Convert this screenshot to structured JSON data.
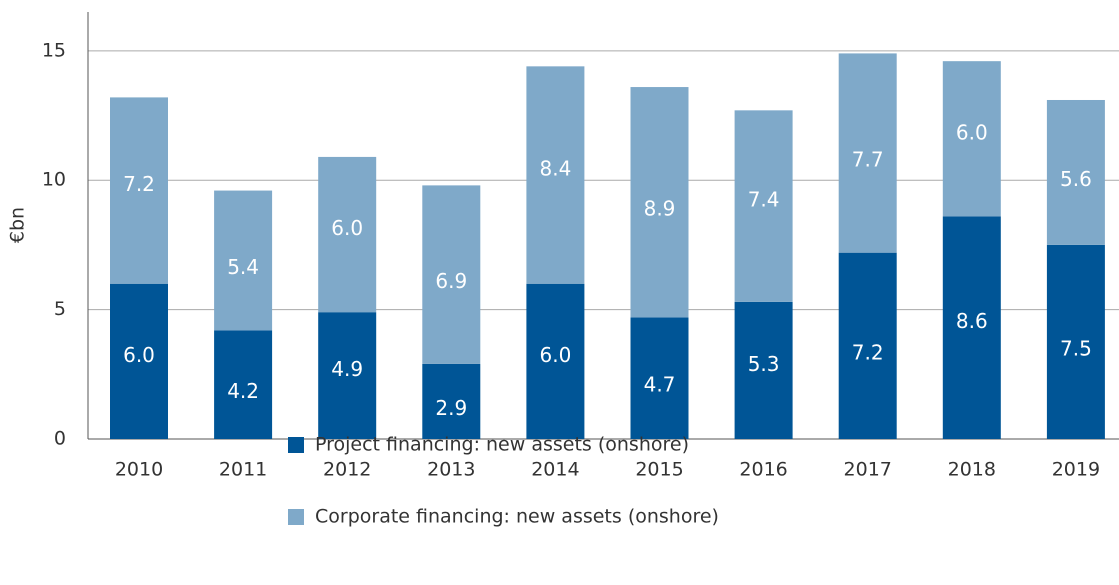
{
  "chart_data": {
    "type": "stacked_bar",
    "y_label": "€bn",
    "categories": [
      "2010",
      "2011",
      "2012",
      "2013",
      "2014",
      "2015",
      "2016",
      "2017",
      "2018",
      "2019"
    ],
    "series": [
      {
        "name": "Project financing: new assets (onshore)",
        "color": "#005596",
        "values": [
          6.0,
          4.2,
          4.9,
          2.9,
          6.0,
          4.7,
          5.3,
          7.2,
          8.6,
          7.5
        ],
        "value_labels": [
          "6.0",
          "4.2",
          "4.9",
          "2.9",
          "6.0",
          "4.7",
          "5.3",
          "7.2",
          "8.6",
          "7.5"
        ]
      },
      {
        "name": "Corporate financing: new assets (onshore)",
        "color": "#7fa9c9",
        "values": [
          7.2,
          5.4,
          6.0,
          6.9,
          8.4,
          8.9,
          7.4,
          7.7,
          6.0,
          5.6
        ],
        "value_labels": [
          "7.2",
          "5.4",
          "6.0",
          "6.9",
          "8.4",
          "8.9",
          "7.4",
          "7.7",
          "6.0",
          "5.6"
        ]
      }
    ],
    "ylim": [
      0,
      16.5
    ],
    "yticks": [
      0,
      5,
      10,
      15
    ],
    "grid": true
  }
}
